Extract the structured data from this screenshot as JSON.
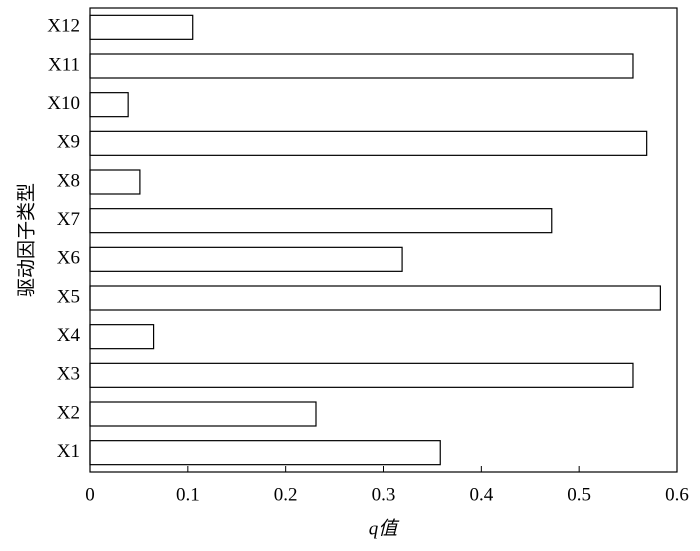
{
  "chart_data": {
    "type": "barh",
    "xlabel": "q值",
    "ylabel": "驱动因子类型",
    "categories": [
      "X1",
      "X2",
      "X3",
      "X4",
      "X5",
      "X6",
      "X7",
      "X8",
      "X9",
      "X10",
      "X11",
      "X12"
    ],
    "values": [
      0.358,
      0.231,
      0.555,
      0.065,
      0.583,
      0.319,
      0.472,
      0.051,
      0.569,
      0.039,
      0.555,
      0.105
    ],
    "color": "#ffffff",
    "xlim": [
      0,
      0.6
    ],
    "xticks": [
      0,
      0.1,
      0.2,
      0.3,
      0.4,
      0.5,
      0.6
    ]
  }
}
